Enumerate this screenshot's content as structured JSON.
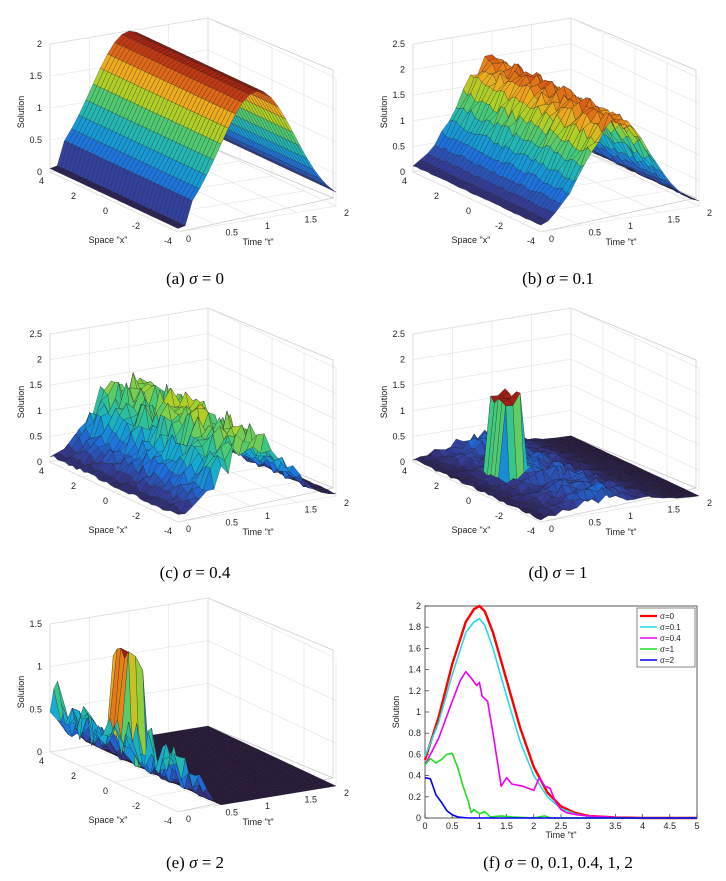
{
  "chart_data": [
    {
      "type": "surface3d",
      "panel": "a",
      "caption_prefix": "(a) ",
      "sigma_symbol": "σ",
      "caption_suffix": " = 0",
      "zlabel": "Solution",
      "xlabel": "Space \"x\"",
      "ylabel": "Time \"t\"",
      "zticks": [
        "0",
        "0.5",
        "1",
        "1.5",
        "2"
      ],
      "xticks": [
        "4",
        "2",
        "0",
        "-2",
        "-4"
      ],
      "tticks": [
        "0",
        "0.5",
        "1",
        "1.5",
        "2"
      ],
      "sigma": 0,
      "zmax": 2.0,
      "peak": 2.0
    },
    {
      "type": "surface3d",
      "panel": "b",
      "caption_prefix": "(b) ",
      "sigma_symbol": "σ",
      "caption_suffix": " = 0.1",
      "zlabel": "Solution",
      "xlabel": "Space \"x\"",
      "ylabel": "Time \"t\"",
      "zticks": [
        "0",
        "0.5",
        "1",
        "1.5",
        "2",
        "2.5"
      ],
      "xticks": [
        "4",
        "2",
        "0",
        "-2",
        "-4"
      ],
      "tticks": [
        "0",
        "0.5",
        "1",
        "1.5",
        "2"
      ],
      "sigma": 0.1,
      "zmax": 2.5,
      "peak": 2.2
    },
    {
      "type": "surface3d",
      "panel": "c",
      "caption_prefix": "(c) ",
      "sigma_symbol": "σ",
      "caption_suffix": " = 0.4",
      "zlabel": "Solution",
      "xlabel": "Space \"x\"",
      "ylabel": "Time \"t\"",
      "zticks": [
        "0",
        "0.5",
        "1",
        "1.5",
        "2",
        "2.5"
      ],
      "xticks": [
        "4",
        "2",
        "0",
        "-2",
        "-4"
      ],
      "tticks": [
        "0",
        "0.5",
        "1",
        "1.5",
        "2"
      ],
      "sigma": 0.4,
      "zmax": 2.5,
      "peak": 2.1
    },
    {
      "type": "surface3d",
      "panel": "d",
      "caption_prefix": "(d) ",
      "sigma_symbol": "σ",
      "caption_suffix": " = 1",
      "zlabel": "Solution",
      "xlabel": "Space \"x\"",
      "ylabel": "Time \"t\"",
      "zticks": [
        "0",
        "0.5",
        "1",
        "1.5",
        "2",
        "2.5"
      ],
      "xticks": [
        "4",
        "2",
        "0",
        "-2",
        "-4"
      ],
      "tticks": [
        "0",
        "0.5",
        "1",
        "1.5",
        "2"
      ],
      "sigma": 1,
      "zmax": 2.5,
      "peak": 1.6
    },
    {
      "type": "surface3d",
      "panel": "e",
      "caption_prefix": "(e) ",
      "sigma_symbol": "σ",
      "caption_suffix": " = 2",
      "zlabel": "Solution",
      "xlabel": "Space \"x\"",
      "ylabel": "Time \"t\"",
      "zticks": [
        "0",
        "0.5",
        "1",
        "1.5"
      ],
      "xticks": [
        "4",
        "2",
        "0",
        "-2",
        "-4"
      ],
      "tticks": [
        "0",
        "0.5",
        "1",
        "1.5",
        "2"
      ],
      "sigma": 2,
      "zmax": 1.5,
      "peak": 1.2
    },
    {
      "type": "line",
      "panel": "f",
      "caption_prefix": "(f) ",
      "sigma_symbol": "σ",
      "caption_suffix": " = 0,  0.1,  0.4,  1,  2",
      "xlabel": "Time \"t\"",
      "ylabel": "Solution",
      "xlim": [
        0,
        5
      ],
      "ylim": [
        0,
        2
      ],
      "xticks": [
        0,
        0.5,
        1,
        1.5,
        2,
        2.5,
        3,
        3.5,
        4,
        4.5,
        5
      ],
      "yticks": [
        0,
        0.2,
        0.4,
        0.6,
        0.8,
        1,
        1.2,
        1.4,
        1.6,
        1.8,
        2
      ],
      "series": [
        {
          "name": "σ=0",
          "color": "#ff0000",
          "x": [
            0,
            0.25,
            0.5,
            0.75,
            0.9,
            1.0,
            1.1,
            1.25,
            1.5,
            1.75,
            2.0,
            2.25,
            2.5,
            2.75,
            3.0,
            3.5,
            4.0,
            4.5,
            5.0
          ],
          "y": [
            0.55,
            0.95,
            1.45,
            1.85,
            1.97,
            2.0,
            1.95,
            1.75,
            1.3,
            0.85,
            0.48,
            0.24,
            0.11,
            0.05,
            0.02,
            0.005,
            0,
            0,
            0
          ]
        },
        {
          "name": "σ=0.1",
          "color": "#22dddd",
          "x": [
            0,
            0.25,
            0.5,
            0.75,
            0.9,
            1.0,
            1.1,
            1.25,
            1.5,
            1.75,
            2.0,
            2.25,
            2.5,
            2.75,
            3.0,
            3.5,
            4.0,
            4.5,
            5.0
          ],
          "y": [
            0.58,
            0.9,
            1.35,
            1.75,
            1.85,
            1.88,
            1.82,
            1.6,
            1.15,
            0.72,
            0.4,
            0.2,
            0.09,
            0.04,
            0.015,
            0.004,
            0,
            0,
            0
          ]
        },
        {
          "name": "σ=0.4",
          "color": "#ee00ee",
          "x": [
            0,
            0.25,
            0.5,
            0.65,
            0.75,
            0.85,
            0.95,
            1.0,
            1.05,
            1.15,
            1.25,
            1.4,
            1.5,
            1.6,
            1.8,
            2.0,
            2.1,
            2.2,
            2.3,
            2.4,
            2.5,
            2.6,
            2.8,
            3.0,
            3.5,
            4.0,
            5.0
          ],
          "y": [
            0.5,
            0.75,
            1.1,
            1.3,
            1.38,
            1.32,
            1.25,
            1.28,
            1.15,
            1.1,
            0.8,
            0.3,
            0.38,
            0.32,
            0.3,
            0.26,
            0.38,
            0.3,
            0.28,
            0.15,
            0.08,
            0.05,
            0.03,
            0.02,
            0.005,
            0,
            0
          ]
        },
        {
          "name": "σ=1",
          "color": "#22dd22",
          "x": [
            0,
            0.1,
            0.2,
            0.3,
            0.4,
            0.5,
            0.6,
            0.7,
            0.8,
            0.85,
            0.9,
            1.0,
            1.1,
            1.2,
            1.4,
            1.6,
            2.0,
            2.2,
            2.3,
            2.5,
            3.0,
            4.0,
            5.0
          ],
          "y": [
            0.5,
            0.56,
            0.52,
            0.55,
            0.6,
            0.61,
            0.48,
            0.3,
            0.15,
            0.05,
            0.08,
            0.04,
            0.06,
            0.01,
            0.02,
            0.01,
            0.0,
            0.02,
            0.0,
            0.0,
            0,
            0,
            0
          ]
        },
        {
          "name": "σ=2",
          "color": "#0000ee",
          "x": [
            0,
            0.1,
            0.2,
            0.3,
            0.4,
            0.5,
            0.6,
            0.7,
            0.8,
            1.0,
            1.5,
            2.0,
            5.0
          ],
          "y": [
            0.38,
            0.37,
            0.22,
            0.15,
            0.07,
            0.03,
            0.01,
            0.005,
            0,
            0,
            0,
            0,
            0
          ]
        }
      ],
      "legend_position": "top-right"
    }
  ]
}
